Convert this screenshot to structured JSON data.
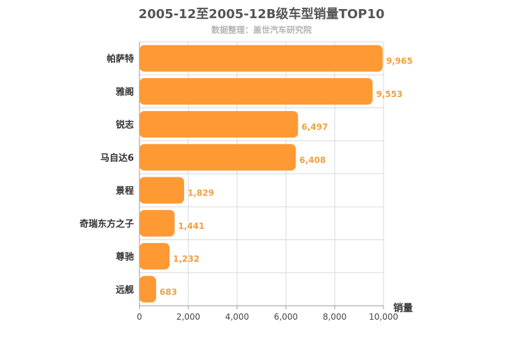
{
  "chart_data": {
    "type": "bar",
    "orientation": "horizontal",
    "title": "2005-12至2005-12B级车型销量TOP10",
    "subtitle": "数据整理：盖世汽车研究院",
    "categories": [
      "帕萨特",
      "雅阁",
      "锐志",
      "马自达6",
      "景程",
      "奇瑞东方之子",
      "尊驰",
      "远舰"
    ],
    "values": [
      9965,
      9553,
      6497,
      6408,
      1829,
      1441,
      1232,
      683
    ],
    "value_labels": [
      "9,965",
      "9,553",
      "6,497",
      "6,408",
      "1,829",
      "1,441",
      "1,232",
      "683"
    ],
    "x_ticks": [
      0,
      2000,
      4000,
      6000,
      8000,
      10000
    ],
    "x_tick_labels": [
      "0",
      "2,000",
      "4,000",
      "6,000",
      "8,000",
      "10,000"
    ],
    "xlim": [
      0,
      10000
    ],
    "xlabel": "销量",
    "ylabel": "",
    "grid": true,
    "legend": "none",
    "colors": {
      "bar": "#ff9933",
      "value_label": "#f0a040",
      "grid": "#d9d9d9",
      "axis": "#999999"
    }
  }
}
